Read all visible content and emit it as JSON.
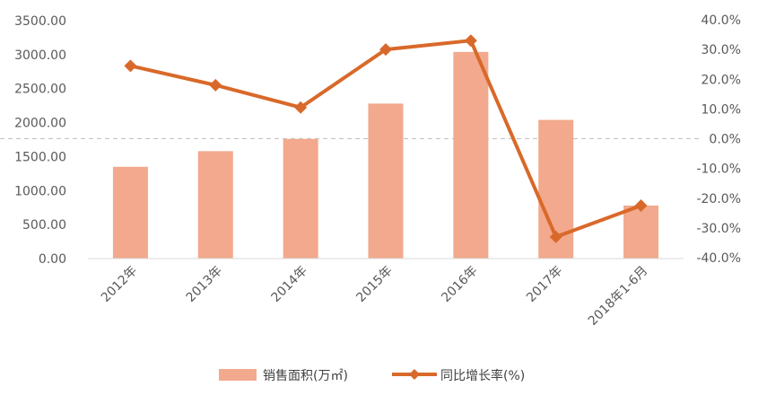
{
  "chart_data": {
    "type": "bar+line",
    "categories": [
      "2012年",
      "2013年",
      "2014年",
      "2015年",
      "2016年",
      "2017年",
      "2018年1-6月"
    ],
    "series": [
      {
        "name": "销售面积(万㎡)",
        "type": "bar",
        "axis": "left",
        "color": "#f2a98d",
        "values": [
          1350,
          1580,
          1760,
          2280,
          3040,
          2040,
          780
        ]
      },
      {
        "name": "同比增长率(%)",
        "type": "line",
        "axis": "right",
        "color": "#d9692a",
        "values": [
          24.5,
          18.0,
          10.5,
          30.0,
          33.0,
          -33.0,
          -22.5
        ]
      }
    ],
    "y_left": {
      "ylim": [
        0,
        3500
      ],
      "ticks": [
        0,
        500,
        1000,
        1500,
        2000,
        2500,
        3000,
        3500
      ],
      "tick_labels": [
        "0.00",
        "500.00",
        "1000.00",
        "1500.00",
        "2000.00",
        "2500.00",
        "3000.00",
        "3500.00"
      ]
    },
    "y_right": {
      "ylim": [
        -40,
        40
      ],
      "ticks": [
        40,
        30,
        20,
        10,
        0,
        -10,
        -20,
        -30,
        -40
      ],
      "tick_labels": [
        "40.0%",
        "30.0%",
        "20.0%",
        "10.0%",
        "0.0%",
        "-10.0%",
        "-20.0%",
        "-30.0%",
        "-40.0%"
      ]
    },
    "zero_reference_line": "dashed",
    "grid": false,
    "legend_position": "bottom-center",
    "title": "",
    "xlabel": "",
    "ylabel": ""
  }
}
